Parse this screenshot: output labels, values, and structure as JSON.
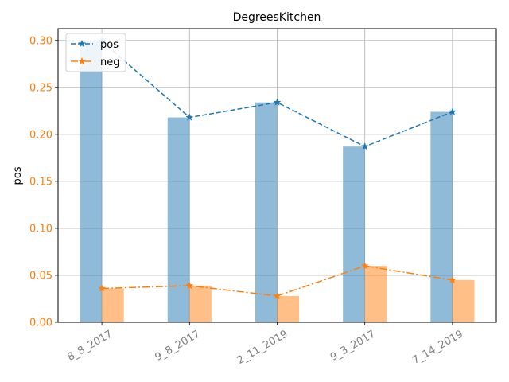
{
  "chart_data": {
    "type": "bar",
    "title": "DegreesKitchen",
    "xlabel": "",
    "ylabel": "pos",
    "categories": [
      "8_8_2017",
      "9_8_2017",
      "2_11_2019",
      "9_3_2017",
      "7_14_2019"
    ],
    "ylim": [
      0.0,
      0.3125
    ],
    "yticks": [
      "0.00",
      "0.05",
      "0.10",
      "0.15",
      "0.20",
      "0.25",
      "0.30"
    ],
    "grid": true,
    "legend_position": "top-left",
    "bar_series": [
      {
        "key": "pos",
        "color": "#1f77b4",
        "values": [
          0.299,
          0.218,
          0.234,
          0.187,
          0.224
        ]
      },
      {
        "key": "neg",
        "color": "#ff7f0e",
        "values": [
          0.036,
          0.039,
          0.028,
          0.06,
          0.045
        ]
      }
    ],
    "series": [
      {
        "name": "pos",
        "color": "#1f77b4",
        "style": "dashed",
        "marker": "star",
        "values": [
          0.299,
          0.218,
          0.234,
          0.187,
          0.224
        ]
      },
      {
        "name": "neg",
        "color": "#ff7f0e",
        "style": "dashdot",
        "marker": "star",
        "values": [
          0.036,
          0.039,
          0.028,
          0.06,
          0.045
        ]
      }
    ],
    "colors": {
      "ytick": "#ff7f0e",
      "xtick": "#808080",
      "grid": "#b0b0b0"
    }
  }
}
